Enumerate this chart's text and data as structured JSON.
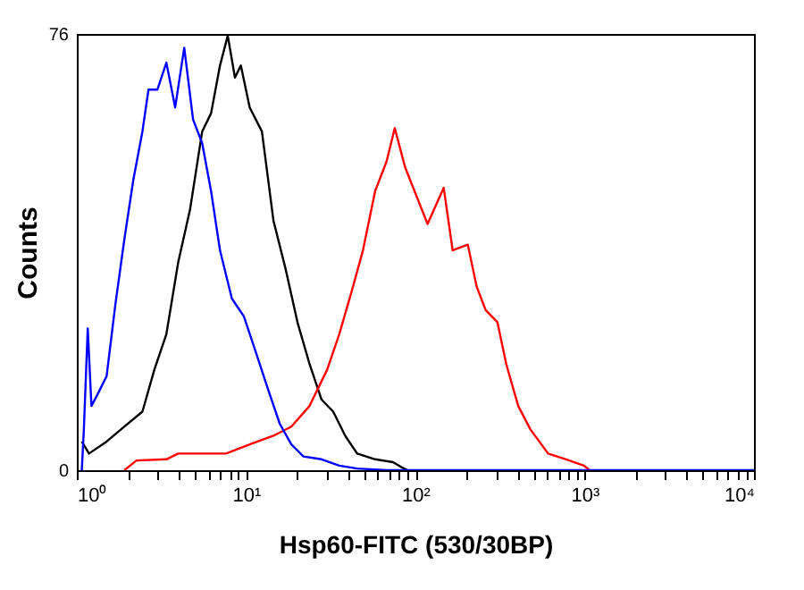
{
  "chart_data": {
    "type": "line",
    "xlabel": "Hsp60-FITC (530/30BP)",
    "ylabel": "Counts",
    "log": "x",
    "grid": false,
    "marker": "none",
    "line_style": "solid",
    "xlim": [
      1,
      10000
    ],
    "ylim": [
      0,
      76
    ],
    "xticks": [
      {
        "value": 1,
        "label": "10⁰"
      },
      {
        "value": 2,
        "label": null
      },
      {
        "value": 3,
        "label": null
      },
      {
        "value": 4,
        "label": null
      },
      {
        "value": 5,
        "label": null
      },
      {
        "value": 6,
        "label": null
      },
      {
        "value": 7,
        "label": null
      },
      {
        "value": 8,
        "label": null
      },
      {
        "value": 9,
        "label": null
      },
      {
        "value": 10,
        "label": "10¹"
      },
      {
        "value": 20,
        "label": null
      },
      {
        "value": 30,
        "label": null
      },
      {
        "value": 40,
        "label": null
      },
      {
        "value": 50,
        "label": null
      },
      {
        "value": 60,
        "label": null
      },
      {
        "value": 70,
        "label": null
      },
      {
        "value": 80,
        "label": null
      },
      {
        "value": 90,
        "label": null
      },
      {
        "value": 100,
        "label": "10²"
      },
      {
        "value": 200,
        "label": null
      },
      {
        "value": 300,
        "label": null
      },
      {
        "value": 400,
        "label": null
      },
      {
        "value": 500,
        "label": null
      },
      {
        "value": 600,
        "label": null
      },
      {
        "value": 700,
        "label": null
      },
      {
        "value": 800,
        "label": null
      },
      {
        "value": 900,
        "label": null
      },
      {
        "value": 1000,
        "label": "10³"
      },
      {
        "value": 2000,
        "label": null
      },
      {
        "value": 3000,
        "label": null
      },
      {
        "value": 4000,
        "label": null
      },
      {
        "value": 5000,
        "label": null
      },
      {
        "value": 6000,
        "label": null
      },
      {
        "value": 7000,
        "label": null
      },
      {
        "value": 8000,
        "label": null
      },
      {
        "value": 9000,
        "label": null
      },
      {
        "value": 10000,
        "label": "10⁴"
      }
    ],
    "yticks": [
      0,
      76
    ],
    "series": [
      {
        "color": "#000000",
        "x": [
          1.07,
          1.18,
          1.5,
          1.91,
          2.44,
          2.87,
          3.38,
          3.97,
          4.67,
          5.5,
          6.21,
          7.01,
          7.79,
          8.59,
          9.31,
          10.5,
          12.4,
          14.5,
          17.1,
          20.1,
          23.7,
          27.9,
          32.7,
          38.5,
          45.3,
          57.8,
          73.8,
          83,
          90
        ],
        "values": [
          5,
          2.9,
          5,
          7.6,
          10.2,
          17.5,
          23.7,
          36.2,
          45.5,
          59,
          62.2,
          70.5,
          75.7,
          68.4,
          70.5,
          63.2,
          59,
          43.5,
          35.1,
          25.8,
          18.5,
          12.3,
          10.2,
          6,
          2.9,
          1.9,
          1.4,
          0.5,
          0
        ]
      },
      {
        "color": "#ff0000",
        "x": [
          1.91,
          2.25,
          3.38,
          3.97,
          5.5,
          7.6,
          10.5,
          14.5,
          18.5,
          23.7,
          30.1,
          35.5,
          41.9,
          49,
          57.8,
          67.6,
          75.5,
          86.9,
          102,
          118,
          147,
          166,
          204,
          230,
          260,
          305,
          344,
          405,
          478,
          608,
          776,
          990,
          1070
        ],
        "values": [
          0,
          1.7,
          1.9,
          2.9,
          2.9,
          2.9,
          4.5,
          6,
          7.6,
          11.2,
          17.5,
          23.7,
          31,
          38.3,
          48.6,
          53.8,
          59.6,
          52.8,
          47.6,
          42.9,
          49.2,
          38.3,
          39.3,
          32,
          27.9,
          25.8,
          18.5,
          11.2,
          7.1,
          2.9,
          1.9,
          0.8,
          0
        ]
      },
      {
        "color": "#0000ff",
        "x": [
          1.07,
          1.1,
          1.16,
          1.22,
          1.33,
          1.5,
          1.69,
          1.91,
          2.16,
          2.44,
          2.65,
          2.99,
          3.38,
          3.81,
          4.31,
          4.86,
          5.5,
          6.21,
          7.01,
          8.24,
          9.7,
          11.4,
          13.4,
          15.8,
          18.5,
          21.8,
          27.9,
          35.5,
          45.3,
          67.6,
          10000
        ],
        "values": [
          0,
          7,
          24.7,
          11.2,
          13.3,
          16.4,
          28.9,
          40.3,
          50.7,
          59,
          66.3,
          66.3,
          71,
          63.2,
          73.6,
          61.1,
          57,
          48.6,
          38.3,
          29.9,
          26.8,
          20.6,
          14.3,
          8.1,
          4.5,
          2.4,
          1.9,
          0.8,
          0.3,
          0,
          0
        ]
      }
    ]
  }
}
